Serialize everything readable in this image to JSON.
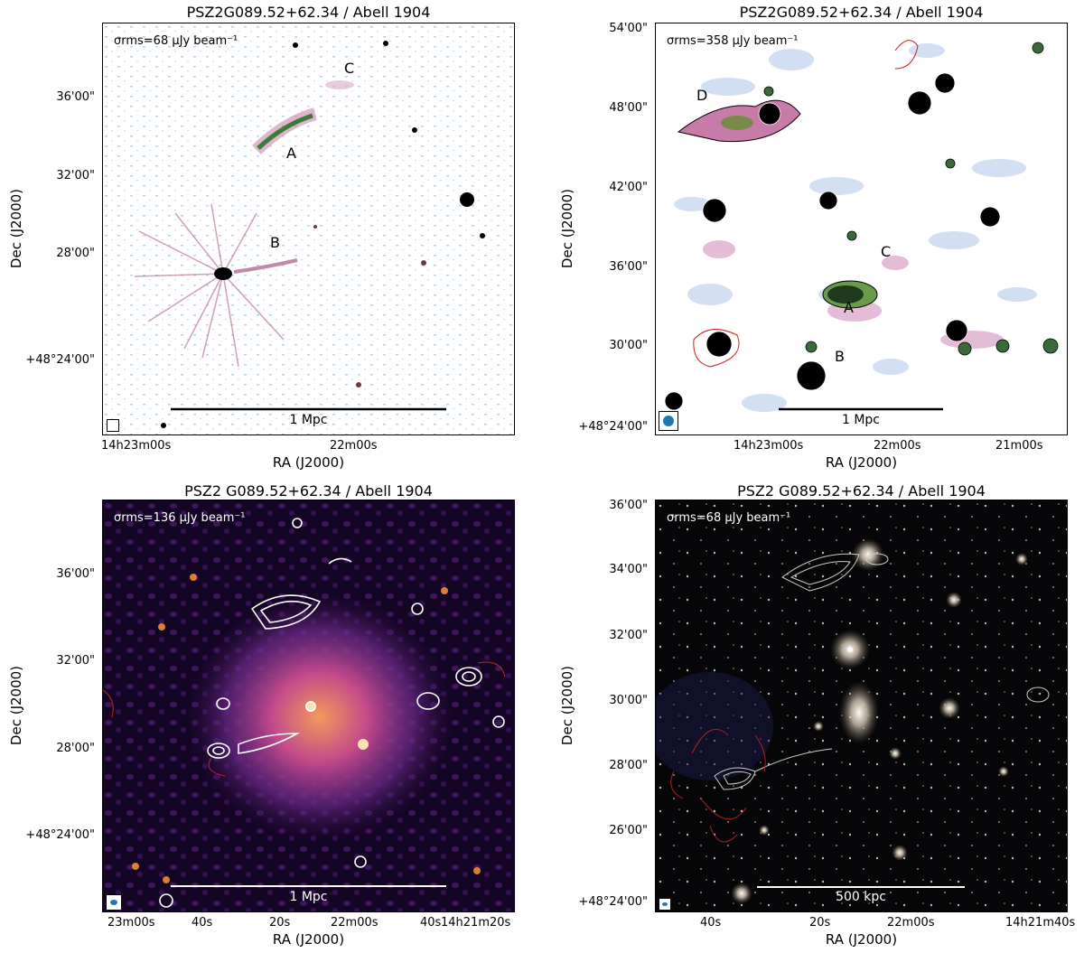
{
  "panels": [
    {
      "title": "PSZ2G089.52+62.34 / Abell 1904",
      "sigma": "σrms=68 μJy beam⁻¹",
      "scalebar": "1 Mpc",
      "labels": [
        "A",
        "B",
        "C"
      ],
      "xlabel": "RA (J2000)",
      "ylabel": "Dec (J2000)",
      "xticks": [
        "14h23m00s",
        "22m00s"
      ],
      "yticks": [
        "36'00\"",
        "32'00\"",
        "28'00\"",
        "+48°24'00\""
      ]
    },
    {
      "title": "PSZ2G089.52+62.34 / Abell 1904",
      "sigma": "σrms=358 μJy beam⁻¹",
      "scalebar": "1 Mpc",
      "labels": [
        "A",
        "B",
        "C",
        "D"
      ],
      "xlabel": "RA (J2000)",
      "ylabel": "Dec (J2000)",
      "xticks": [
        "14h23m00s",
        "22m00s",
        "21m00s"
      ],
      "yticks": [
        "54'00\"",
        "48'00\"",
        "42'00\"",
        "36'00\"",
        "30'00\"",
        "+48°24'00\""
      ]
    },
    {
      "title": "PSZ2 G089.52+62.34 / Abell 1904",
      "sigma": "σrms=136 μJy beam⁻¹",
      "scalebar": "1 Mpc",
      "xlabel": "RA (J2000)",
      "ylabel": "Dec (J2000)",
      "xticks": [
        "23m00s",
        "40s",
        "20s",
        "22m00s",
        "40s",
        "14h21m20s"
      ],
      "yticks": [
        "36'00\"",
        "32'00\"",
        "28'00\"",
        "+48°24'00\""
      ]
    },
    {
      "title": "PSZ2 G089.52+62.34 / Abell 1904",
      "sigma": "σrms=68 μJy beam⁻¹",
      "scalebar": "500 kpc",
      "xlabel": "RA (J2000)",
      "ylabel": "Dec (J2000)",
      "xticks": [
        "40s",
        "20s",
        "22m00s",
        "14h21m40s"
      ],
      "yticks": [
        "36'00\"",
        "34'00\"",
        "32'00\"",
        "30'00\"",
        "28'00\"",
        "26'00\"",
        "+48°24'00\""
      ]
    }
  ]
}
